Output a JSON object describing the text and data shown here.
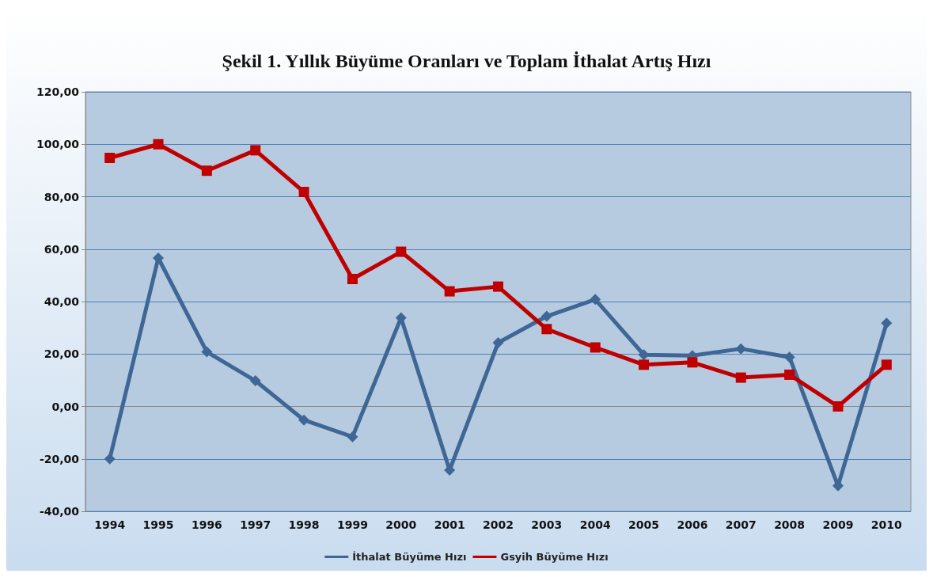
{
  "chart_data": {
    "type": "line",
    "title": "Şekil 1. Yıllık Büyüme Oranları ve Toplam İthalat Artış Hızı",
    "categories": [
      "1994",
      "1995",
      "1996",
      "1997",
      "1998",
      "1999",
      "2000",
      "2001",
      "2002",
      "2003",
      "2004",
      "2005",
      "2006",
      "2007",
      "2008",
      "2009",
      "2010"
    ],
    "series": [
      {
        "name": "İthalat Büyüme Hızı",
        "color": "#3f6796",
        "marker": "diamond",
        "values": [
          -20,
          56.6,
          20.8,
          9.8,
          -5.2,
          -11.6,
          33.8,
          -24.3,
          24.3,
          34.4,
          40.8,
          19.7,
          19.4,
          22,
          18.8,
          -30.3,
          31.8
        ]
      },
      {
        "name": "Gsyih Büyüme Hızı",
        "color": "#c00000",
        "marker": "square",
        "values": [
          94.8,
          100,
          89.9,
          97.7,
          81.8,
          48.6,
          59,
          43.9,
          45.7,
          29.5,
          22.5,
          15.9,
          16.8,
          11,
          12.1,
          0,
          15.9
        ]
      }
    ],
    "ylim": [
      -40,
      120
    ],
    "yticks": [
      {
        "value": -40,
        "label": "-40,00"
      },
      {
        "value": -20,
        "label": "-20,00"
      },
      {
        "value": 0,
        "label": "0,00"
      },
      {
        "value": 20,
        "label": "20,00"
      },
      {
        "value": 40,
        "label": "40,00"
      },
      {
        "value": 60,
        "label": "60,00"
      },
      {
        "value": 80,
        "label": "80,00"
      },
      {
        "value": 100,
        "label": "100,00"
      },
      {
        "value": 120,
        "label": "120,00"
      }
    ],
    "grid": "y",
    "legend": "bottom",
    "line_style": "solid"
  }
}
